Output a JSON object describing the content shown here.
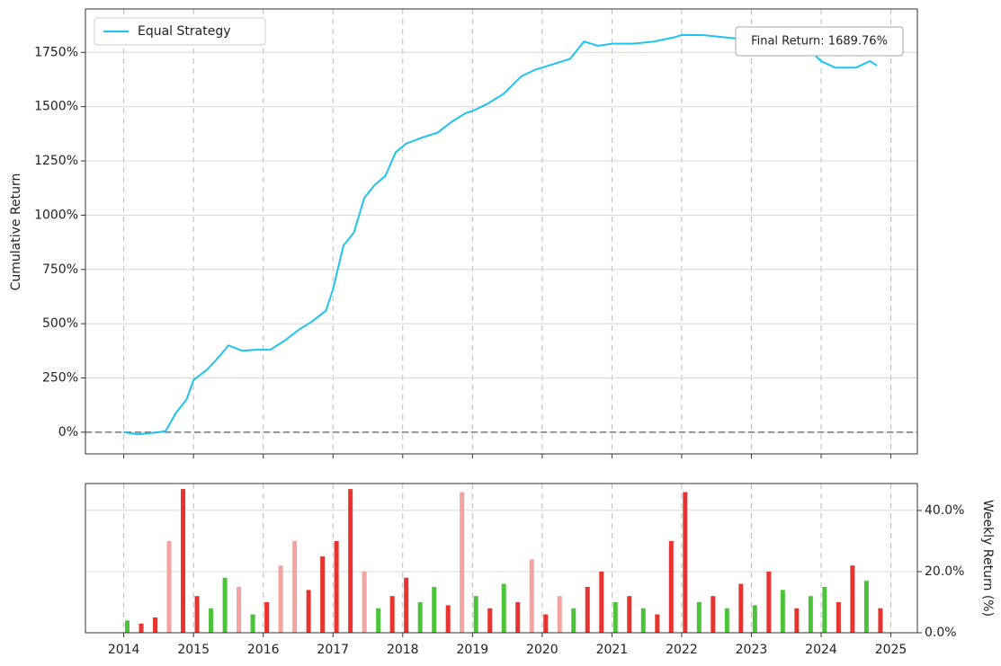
{
  "chart_data": [
    {
      "type": "line",
      "y_label": "Cumulative Return",
      "annotation": "Final Return: 1689.76%",
      "legend": "upper left",
      "grid": true,
      "hline": 0,
      "xlim": [
        2013.45,
        2025.38
      ],
      "xticks": [
        2014,
        2015,
        2016,
        2017,
        2018,
        2019,
        2020,
        2021,
        2022,
        2023,
        2024,
        2025
      ],
      "ylim": [
        -100,
        1950
      ],
      "yticks": [
        {
          "value": 0,
          "label": "0%"
        },
        {
          "value": 250,
          "label": "250%"
        },
        {
          "value": 500,
          "label": "500%"
        },
        {
          "value": 750,
          "label": "750%"
        },
        {
          "value": 1000,
          "label": "1000%"
        },
        {
          "value": 1250,
          "label": "1250%"
        },
        {
          "value": 1500,
          "label": "1500%"
        },
        {
          "value": 1750,
          "label": "1750%"
        }
      ],
      "series": [
        {
          "name": "Equal Strategy",
          "color": "#1ec3f0",
          "x": [
            2014.0,
            2014.2,
            2014.5,
            2014.6,
            2014.75,
            2014.9,
            2015.0,
            2015.2,
            2015.4,
            2015.5,
            2015.7,
            2015.9,
            2016.1,
            2016.3,
            2016.5,
            2016.7,
            2016.9,
            2017.0,
            2017.15,
            2017.3,
            2017.45,
            2017.6,
            2017.75,
            2017.9,
            2018.05,
            2018.3,
            2018.5,
            2018.7,
            2018.9,
            2019.0,
            2019.2,
            2019.45,
            2019.7,
            2019.9,
            2020.1,
            2020.4,
            2020.5,
            2020.6,
            2020.8,
            2021.0,
            2021.3,
            2021.6,
            2021.9,
            2022.0,
            2022.3,
            2022.6,
            2022.9,
            2023.2,
            2023.5,
            2023.8,
            2024.0,
            2024.2,
            2024.5,
            2024.7,
            2024.8
          ],
          "values": [
            0,
            -10,
            0,
            5,
            90,
            150,
            240,
            290,
            360,
            400,
            375,
            380,
            380,
            420,
            470,
            510,
            560,
            660,
            860,
            920,
            1080,
            1140,
            1180,
            1290,
            1330,
            1360,
            1380,
            1430,
            1470,
            1480,
            1510,
            1560,
            1640,
            1670,
            1690,
            1720,
            1760,
            1800,
            1780,
            1790,
            1790,
            1800,
            1820,
            1830,
            1830,
            1820,
            1810,
            1790,
            1780,
            1770,
            1710,
            1680,
            1680,
            1710,
            1690
          ]
        }
      ]
    },
    {
      "type": "bar",
      "y2_label": "Weekly Return (%)",
      "grid": true,
      "xlim": [
        2013.45,
        2025.38
      ],
      "xticks": [
        2014,
        2015,
        2016,
        2017,
        2018,
        2019,
        2020,
        2021,
        2022,
        2023,
        2024,
        2025
      ],
      "y2lim": [
        0,
        48.8
      ],
      "y2ticks": [
        {
          "value": 0,
          "label": "0.0%"
        },
        {
          "value": 20,
          "label": "20.0%"
        },
        {
          "value": 40,
          "label": "40.0%"
        }
      ],
      "x": [
        2014.05,
        2014.25,
        2014.45,
        2014.65,
        2014.85,
        2015.05,
        2015.25,
        2015.45,
        2015.65,
        2015.85,
        2016.05,
        2016.25,
        2016.45,
        2016.65,
        2016.85,
        2017.05,
        2017.25,
        2017.45,
        2017.65,
        2017.85,
        2018.05,
        2018.25,
        2018.45,
        2018.65,
        2018.85,
        2019.05,
        2019.25,
        2019.45,
        2019.65,
        2019.85,
        2020.05,
        2020.25,
        2020.45,
        2020.65,
        2020.85,
        2021.05,
        2021.25,
        2021.45,
        2021.65,
        2021.85,
        2022.05,
        2022.25,
        2022.45,
        2022.65,
        2022.85,
        2023.05,
        2023.25,
        2023.45,
        2023.65,
        2023.85,
        2024.05,
        2024.25,
        2024.45,
        2024.65,
        2024.85
      ],
      "values": [
        4,
        3,
        5,
        30,
        47,
        12,
        8,
        18,
        15,
        6,
        10,
        22,
        30,
        14,
        25,
        30,
        47,
        20,
        8,
        12,
        18,
        10,
        15,
        9,
        46,
        12,
        8,
        16,
        10,
        24,
        6,
        12,
        8,
        15,
        20,
        10,
        12,
        8,
        6,
        30,
        46,
        10,
        12,
        8,
        16,
        9,
        20,
        14,
        8,
        12,
        15,
        10,
        22,
        17,
        8
      ],
      "colors": [
        "#4cc43a",
        "#e8332e",
        "#e8332e",
        "#f5a3a0",
        "#e8332e",
        "#e8332e",
        "#4cc43a",
        "#4cc43a",
        "#f5a3a0",
        "#4cc43a",
        "#e8332e",
        "#f5a3a0",
        "#f5a3a0",
        "#e8332e",
        "#e8332e",
        "#e8332e",
        "#e8332e",
        "#f5a3a0",
        "#4cc43a",
        "#e8332e",
        "#e8332e",
        "#4cc43a",
        "#4cc43a",
        "#e8332e",
        "#f5a3a0",
        "#4cc43a",
        "#e8332e",
        "#4cc43a",
        "#e8332e",
        "#f5a3a0",
        "#e8332e",
        "#f5a3a0",
        "#4cc43a",
        "#e8332e",
        "#e8332e",
        "#4cc43a",
        "#e8332e",
        "#4cc43a",
        "#e8332e",
        "#e8332e",
        "#e8332e",
        "#4cc43a",
        "#e8332e",
        "#4cc43a",
        "#e8332e",
        "#4cc43a",
        "#e8332e",
        "#4cc43a",
        "#e8332e",
        "#4cc43a",
        "#4cc43a",
        "#e8332e",
        "#e8332e",
        "#4cc43a",
        "#e8332e"
      ]
    }
  ]
}
